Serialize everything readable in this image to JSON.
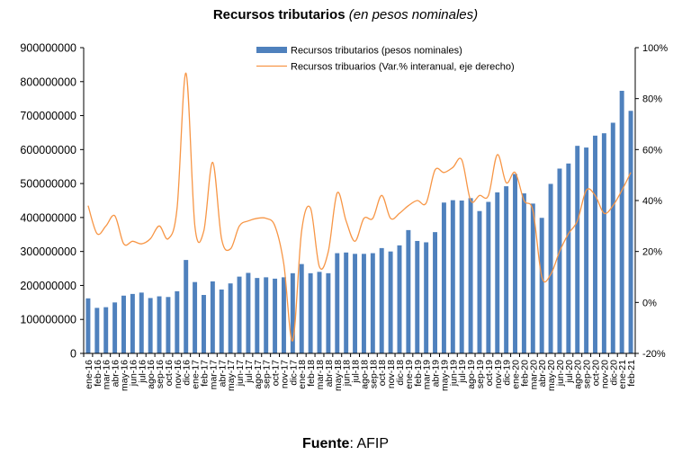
{
  "title": "Recursos tributarios",
  "subtitle": "(en pesos nominales)",
  "source": {
    "label": "Fuente",
    "value": ": AFIP"
  },
  "colors": {
    "bar": "#4f81bd",
    "line": "#f79646",
    "axis": "#000000"
  },
  "chart_data": {
    "type": "bar",
    "categories": [
      "ene-16",
      "feb-16",
      "mar-16",
      "abr-16",
      "may-16",
      "jun-16",
      "jul-16",
      "ago-16",
      "sep-16",
      "oct-16",
      "nov-16",
      "dic-16",
      "ene-17",
      "feb-17",
      "mar-17",
      "abr-17",
      "may-17",
      "jun-17",
      "jul-17",
      "ago-17",
      "sep-17",
      "oct-17",
      "nov-17",
      "dic-17",
      "ene-18",
      "feb-18",
      "mar-18",
      "abr-18",
      "may-18",
      "jun-18",
      "jul-18",
      "ago-18",
      "sep-18",
      "oct-18",
      "nov-18",
      "dic-18",
      "ene-19",
      "feb-19",
      "mar-19",
      "abr-19",
      "may-19",
      "jun-19",
      "jul-19",
      "ago-19",
      "sep-19",
      "oct-19",
      "nov-19",
      "dic-19",
      "ene-20",
      "feb-20",
      "mar-20",
      "abr-20",
      "may-20",
      "jun-20",
      "jul-20",
      "ago-20",
      "sep-20",
      "oct-20",
      "nov-20",
      "dic-20",
      "ene-21",
      "feb-21"
    ],
    "series": [
      {
        "name": "Recursos tributarios (pesos nominales)",
        "type": "bar",
        "axis": "left",
        "values": [
          162000000,
          134000000,
          136000000,
          150000000,
          170000000,
          175000000,
          179000000,
          163000000,
          168000000,
          166000000,
          183000000,
          275000000,
          210000000,
          172000000,
          212000000,
          188000000,
          206000000,
          226000000,
          237000000,
          222000000,
          224000000,
          220000000,
          224000000,
          236000000,
          263000000,
          236000000,
          240000000,
          236000000,
          295000000,
          297000000,
          293000000,
          293000000,
          295000000,
          310000000,
          300000000,
          318000000,
          363000000,
          331000000,
          327000000,
          357000000,
          444000000,
          451000000,
          450000000,
          457000000,
          419000000,
          446000000,
          474000000,
          492000000,
          528000000,
          471000000,
          441000000,
          399000000,
          499000000,
          544000000,
          559000000,
          611000000,
          606000000,
          641000000,
          648000000,
          679000000,
          773000000,
          714000000
        ]
      },
      {
        "name": "Recursos tribuarios (Var.% interanual, eje derecho)",
        "type": "line",
        "axis": "right",
        "values": [
          38,
          27,
          30,
          34,
          23,
          24,
          23,
          25,
          30,
          25,
          37,
          90,
          30,
          28,
          55,
          25,
          21,
          30,
          32,
          33,
          33,
          30,
          15,
          -15,
          28,
          37,
          14,
          20,
          43,
          32,
          24,
          33,
          33,
          42,
          33,
          35,
          38,
          40,
          39,
          52,
          51,
          53,
          56,
          40,
          42,
          42,
          58,
          47,
          51,
          40,
          36,
          10,
          11,
          20,
          27,
          32,
          44,
          42,
          35,
          38,
          44,
          51
        ]
      }
    ],
    "y_left": {
      "min": 0,
      "max": 900000000,
      "ticks": [
        "0",
        "100000000",
        "200000000",
        "300000000",
        "400000000",
        "500000000",
        "600000000",
        "700000000",
        "800000000",
        "900000000"
      ]
    },
    "y_right": {
      "min": -20,
      "max": 100,
      "ticks": [
        "-20%",
        "0%",
        "20%",
        "40%",
        "60%",
        "80%",
        "100%"
      ]
    },
    "grid": false,
    "legend": "top-center"
  }
}
